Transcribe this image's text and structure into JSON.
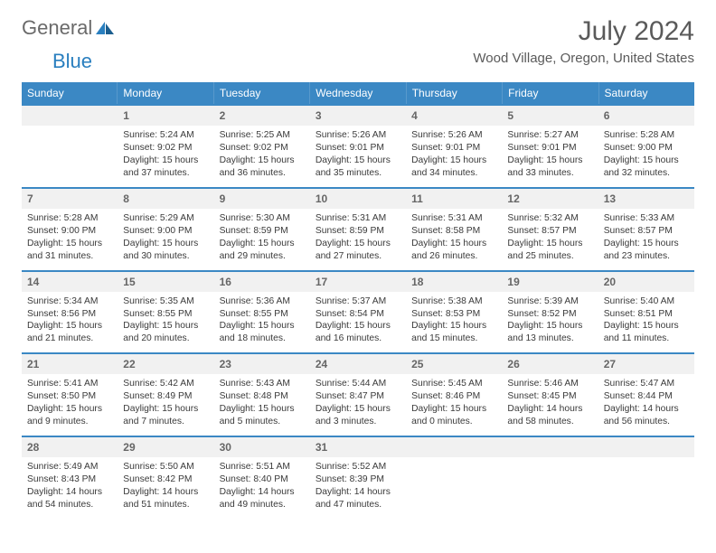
{
  "brand": {
    "general": "General",
    "blue": "Blue"
  },
  "title": "July 2024",
  "location": "Wood Village, Oregon, United States",
  "colors": {
    "header_bg": "#3b88c4",
    "header_text": "#ffffff",
    "daynum_bg": "#f1f1f1",
    "daynum_border": "#3b88c4",
    "body_text": "#3a3a3a",
    "title_text": "#5a5a5a"
  },
  "days_of_week": [
    "Sunday",
    "Monday",
    "Tuesday",
    "Wednesday",
    "Thursday",
    "Friday",
    "Saturday"
  ],
  "days": [
    {
      "num": "",
      "sunrise": "",
      "sunset": "",
      "daylight": ""
    },
    {
      "num": "1",
      "sunrise": "5:24 AM",
      "sunset": "9:02 PM",
      "daylight": "15 hours and 37 minutes."
    },
    {
      "num": "2",
      "sunrise": "5:25 AM",
      "sunset": "9:02 PM",
      "daylight": "15 hours and 36 minutes."
    },
    {
      "num": "3",
      "sunrise": "5:26 AM",
      "sunset": "9:01 PM",
      "daylight": "15 hours and 35 minutes."
    },
    {
      "num": "4",
      "sunrise": "5:26 AM",
      "sunset": "9:01 PM",
      "daylight": "15 hours and 34 minutes."
    },
    {
      "num": "5",
      "sunrise": "5:27 AM",
      "sunset": "9:01 PM",
      "daylight": "15 hours and 33 minutes."
    },
    {
      "num": "6",
      "sunrise": "5:28 AM",
      "sunset": "9:00 PM",
      "daylight": "15 hours and 32 minutes."
    },
    {
      "num": "7",
      "sunrise": "5:28 AM",
      "sunset": "9:00 PM",
      "daylight": "15 hours and 31 minutes."
    },
    {
      "num": "8",
      "sunrise": "5:29 AM",
      "sunset": "9:00 PM",
      "daylight": "15 hours and 30 minutes."
    },
    {
      "num": "9",
      "sunrise": "5:30 AM",
      "sunset": "8:59 PM",
      "daylight": "15 hours and 29 minutes."
    },
    {
      "num": "10",
      "sunrise": "5:31 AM",
      "sunset": "8:59 PM",
      "daylight": "15 hours and 27 minutes."
    },
    {
      "num": "11",
      "sunrise": "5:31 AM",
      "sunset": "8:58 PM",
      "daylight": "15 hours and 26 minutes."
    },
    {
      "num": "12",
      "sunrise": "5:32 AM",
      "sunset": "8:57 PM",
      "daylight": "15 hours and 25 minutes."
    },
    {
      "num": "13",
      "sunrise": "5:33 AM",
      "sunset": "8:57 PM",
      "daylight": "15 hours and 23 minutes."
    },
    {
      "num": "14",
      "sunrise": "5:34 AM",
      "sunset": "8:56 PM",
      "daylight": "15 hours and 21 minutes."
    },
    {
      "num": "15",
      "sunrise": "5:35 AM",
      "sunset": "8:55 PM",
      "daylight": "15 hours and 20 minutes."
    },
    {
      "num": "16",
      "sunrise": "5:36 AM",
      "sunset": "8:55 PM",
      "daylight": "15 hours and 18 minutes."
    },
    {
      "num": "17",
      "sunrise": "5:37 AM",
      "sunset": "8:54 PM",
      "daylight": "15 hours and 16 minutes."
    },
    {
      "num": "18",
      "sunrise": "5:38 AM",
      "sunset": "8:53 PM",
      "daylight": "15 hours and 15 minutes."
    },
    {
      "num": "19",
      "sunrise": "5:39 AM",
      "sunset": "8:52 PM",
      "daylight": "15 hours and 13 minutes."
    },
    {
      "num": "20",
      "sunrise": "5:40 AM",
      "sunset": "8:51 PM",
      "daylight": "15 hours and 11 minutes."
    },
    {
      "num": "21",
      "sunrise": "5:41 AM",
      "sunset": "8:50 PM",
      "daylight": "15 hours and 9 minutes."
    },
    {
      "num": "22",
      "sunrise": "5:42 AM",
      "sunset": "8:49 PM",
      "daylight": "15 hours and 7 minutes."
    },
    {
      "num": "23",
      "sunrise": "5:43 AM",
      "sunset": "8:48 PM",
      "daylight": "15 hours and 5 minutes."
    },
    {
      "num": "24",
      "sunrise": "5:44 AM",
      "sunset": "8:47 PM",
      "daylight": "15 hours and 3 minutes."
    },
    {
      "num": "25",
      "sunrise": "5:45 AM",
      "sunset": "8:46 PM",
      "daylight": "15 hours and 0 minutes."
    },
    {
      "num": "26",
      "sunrise": "5:46 AM",
      "sunset": "8:45 PM",
      "daylight": "14 hours and 58 minutes."
    },
    {
      "num": "27",
      "sunrise": "5:47 AM",
      "sunset": "8:44 PM",
      "daylight": "14 hours and 56 minutes."
    },
    {
      "num": "28",
      "sunrise": "5:49 AM",
      "sunset": "8:43 PM",
      "daylight": "14 hours and 54 minutes."
    },
    {
      "num": "29",
      "sunrise": "5:50 AM",
      "sunset": "8:42 PM",
      "daylight": "14 hours and 51 minutes."
    },
    {
      "num": "30",
      "sunrise": "5:51 AM",
      "sunset": "8:40 PM",
      "daylight": "14 hours and 49 minutes."
    },
    {
      "num": "31",
      "sunrise": "5:52 AM",
      "sunset": "8:39 PM",
      "daylight": "14 hours and 47 minutes."
    },
    {
      "num": "",
      "sunrise": "",
      "sunset": "",
      "daylight": ""
    },
    {
      "num": "",
      "sunrise": "",
      "sunset": "",
      "daylight": ""
    },
    {
      "num": "",
      "sunrise": "",
      "sunset": "",
      "daylight": ""
    }
  ],
  "labels": {
    "sunrise_prefix": "Sunrise: ",
    "sunset_prefix": "Sunset: ",
    "daylight_prefix": "Daylight: "
  }
}
